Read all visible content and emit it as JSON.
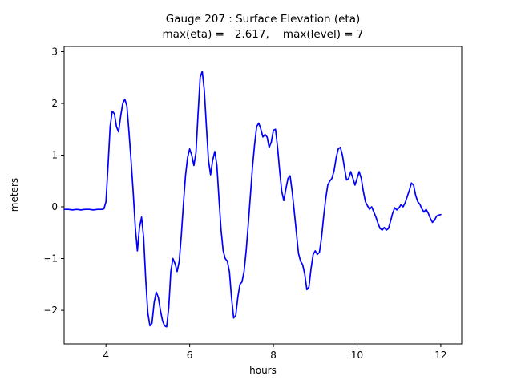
{
  "figure": {
    "background": "#ffffff",
    "axes_border_color": "#000000",
    "line_color": "#0000ff"
  },
  "chart_data": {
    "type": "line",
    "title": "Gauge 207 : Surface Elevation (eta)",
    "subtitle": "max(eta) =   2.617,    max(level) = 7",
    "xlabel": "hours",
    "ylabel": "meters",
    "xlim": [
      3.0,
      12.5
    ],
    "ylim": [
      -2.65,
      3.1
    ],
    "xticks": [
      4,
      6,
      8,
      10,
      12
    ],
    "xtick_labels": [
      "4",
      "6",
      "8",
      "10",
      "12"
    ],
    "yticks": [
      -2,
      -1,
      0,
      1,
      2,
      3
    ],
    "ytick_labels": [
      "−2",
      "−1",
      "0",
      "1",
      "2",
      "3"
    ],
    "grid": false,
    "legend": null,
    "max_eta": 2.617,
    "max_level": 7,
    "series": [
      {
        "name": "eta",
        "color": "#0000ff",
        "points": [
          [
            3.0,
            -0.05
          ],
          [
            3.1,
            -0.05
          ],
          [
            3.2,
            -0.06
          ],
          [
            3.3,
            -0.05
          ],
          [
            3.4,
            -0.06
          ],
          [
            3.5,
            -0.05
          ],
          [
            3.6,
            -0.05
          ],
          [
            3.7,
            -0.06
          ],
          [
            3.8,
            -0.05
          ],
          [
            3.9,
            -0.05
          ],
          [
            3.95,
            -0.04
          ],
          [
            4.0,
            0.1
          ],
          [
            4.05,
            0.8
          ],
          [
            4.1,
            1.55
          ],
          [
            4.15,
            1.85
          ],
          [
            4.2,
            1.8
          ],
          [
            4.25,
            1.55
          ],
          [
            4.3,
            1.45
          ],
          [
            4.35,
            1.75
          ],
          [
            4.4,
            2.0
          ],
          [
            4.45,
            2.08
          ],
          [
            4.5,
            1.95
          ],
          [
            4.55,
            1.45
          ],
          [
            4.6,
            0.9
          ],
          [
            4.65,
            0.3
          ],
          [
            4.7,
            -0.4
          ],
          [
            4.75,
            -0.85
          ],
          [
            4.8,
            -0.4
          ],
          [
            4.85,
            -0.2
          ],
          [
            4.9,
            -0.6
          ],
          [
            4.95,
            -1.4
          ],
          [
            5.0,
            -2.05
          ],
          [
            5.05,
            -2.3
          ],
          [
            5.1,
            -2.25
          ],
          [
            5.15,
            -1.85
          ],
          [
            5.2,
            -1.65
          ],
          [
            5.25,
            -1.75
          ],
          [
            5.3,
            -2.0
          ],
          [
            5.35,
            -2.2
          ],
          [
            5.4,
            -2.3
          ],
          [
            5.45,
            -2.32
          ],
          [
            5.5,
            -1.95
          ],
          [
            5.55,
            -1.25
          ],
          [
            5.6,
            -1.0
          ],
          [
            5.65,
            -1.1
          ],
          [
            5.7,
            -1.25
          ],
          [
            5.75,
            -1.05
          ],
          [
            5.8,
            -0.55
          ],
          [
            5.85,
            0.05
          ],
          [
            5.9,
            0.6
          ],
          [
            5.95,
            0.95
          ],
          [
            6.0,
            1.12
          ],
          [
            6.05,
            1.0
          ],
          [
            6.1,
            0.8
          ],
          [
            6.15,
            1.05
          ],
          [
            6.2,
            1.8
          ],
          [
            6.25,
            2.5
          ],
          [
            6.3,
            2.62
          ],
          [
            6.35,
            2.25
          ],
          [
            6.4,
            1.55
          ],
          [
            6.45,
            0.9
          ],
          [
            6.5,
            0.62
          ],
          [
            6.55,
            0.9
          ],
          [
            6.6,
            1.07
          ],
          [
            6.65,
            0.8
          ],
          [
            6.7,
            0.15
          ],
          [
            6.75,
            -0.45
          ],
          [
            6.8,
            -0.85
          ],
          [
            6.85,
            -1.0
          ],
          [
            6.9,
            -1.05
          ],
          [
            6.95,
            -1.25
          ],
          [
            7.0,
            -1.75
          ],
          [
            7.05,
            -2.15
          ],
          [
            7.1,
            -2.1
          ],
          [
            7.15,
            -1.75
          ],
          [
            7.2,
            -1.5
          ],
          [
            7.25,
            -1.45
          ],
          [
            7.3,
            -1.25
          ],
          [
            7.35,
            -0.85
          ],
          [
            7.4,
            -0.35
          ],
          [
            7.45,
            0.2
          ],
          [
            7.5,
            0.75
          ],
          [
            7.55,
            1.2
          ],
          [
            7.6,
            1.55
          ],
          [
            7.65,
            1.62
          ],
          [
            7.7,
            1.5
          ],
          [
            7.75,
            1.35
          ],
          [
            7.8,
            1.4
          ],
          [
            7.85,
            1.35
          ],
          [
            7.9,
            1.15
          ],
          [
            7.95,
            1.25
          ],
          [
            8.0,
            1.48
          ],
          [
            8.05,
            1.5
          ],
          [
            8.1,
            1.15
          ],
          [
            8.15,
            0.7
          ],
          [
            8.2,
            0.3
          ],
          [
            8.25,
            0.12
          ],
          [
            8.3,
            0.35
          ],
          [
            8.35,
            0.55
          ],
          [
            8.4,
            0.6
          ],
          [
            8.45,
            0.3
          ],
          [
            8.5,
            -0.1
          ],
          [
            8.55,
            -0.5
          ],
          [
            8.6,
            -0.9
          ],
          [
            8.65,
            -1.05
          ],
          [
            8.7,
            -1.12
          ],
          [
            8.75,
            -1.3
          ],
          [
            8.8,
            -1.6
          ],
          [
            8.85,
            -1.55
          ],
          [
            8.9,
            -1.2
          ],
          [
            8.95,
            -0.92
          ],
          [
            9.0,
            -0.85
          ],
          [
            9.05,
            -0.92
          ],
          [
            9.1,
            -0.88
          ],
          [
            9.15,
            -0.6
          ],
          [
            9.2,
            -0.2
          ],
          [
            9.25,
            0.15
          ],
          [
            9.3,
            0.42
          ],
          [
            9.35,
            0.5
          ],
          [
            9.4,
            0.55
          ],
          [
            9.45,
            0.7
          ],
          [
            9.5,
            0.95
          ],
          [
            9.55,
            1.12
          ],
          [
            9.6,
            1.15
          ],
          [
            9.65,
            1.0
          ],
          [
            9.7,
            0.75
          ],
          [
            9.75,
            0.52
          ],
          [
            9.8,
            0.55
          ],
          [
            9.85,
            0.68
          ],
          [
            9.9,
            0.55
          ],
          [
            9.95,
            0.42
          ],
          [
            10.0,
            0.55
          ],
          [
            10.05,
            0.68
          ],
          [
            10.1,
            0.55
          ],
          [
            10.15,
            0.3
          ],
          [
            10.2,
            0.1
          ],
          [
            10.25,
            0.02
          ],
          [
            10.3,
            -0.05
          ],
          [
            10.35,
            0.0
          ],
          [
            10.4,
            -0.1
          ],
          [
            10.45,
            -0.2
          ],
          [
            10.5,
            -0.32
          ],
          [
            10.55,
            -0.42
          ],
          [
            10.6,
            -0.45
          ],
          [
            10.65,
            -0.4
          ],
          [
            10.7,
            -0.45
          ],
          [
            10.75,
            -0.42
          ],
          [
            10.8,
            -0.28
          ],
          [
            10.85,
            -0.12
          ],
          [
            10.9,
            -0.02
          ],
          [
            10.95,
            -0.06
          ],
          [
            11.0,
            -0.02
          ],
          [
            11.05,
            0.04
          ],
          [
            11.1,
            0.0
          ],
          [
            11.15,
            0.08
          ],
          [
            11.2,
            0.2
          ],
          [
            11.25,
            0.32
          ],
          [
            11.3,
            0.46
          ],
          [
            11.35,
            0.42
          ],
          [
            11.4,
            0.22
          ],
          [
            11.45,
            0.1
          ],
          [
            11.5,
            0.05
          ],
          [
            11.55,
            -0.04
          ],
          [
            11.6,
            -0.1
          ],
          [
            11.65,
            -0.05
          ],
          [
            11.7,
            -0.12
          ],
          [
            11.75,
            -0.22
          ],
          [
            11.8,
            -0.3
          ],
          [
            11.85,
            -0.26
          ],
          [
            11.9,
            -0.18
          ],
          [
            11.95,
            -0.16
          ],
          [
            12.0,
            -0.15
          ]
        ]
      }
    ]
  }
}
